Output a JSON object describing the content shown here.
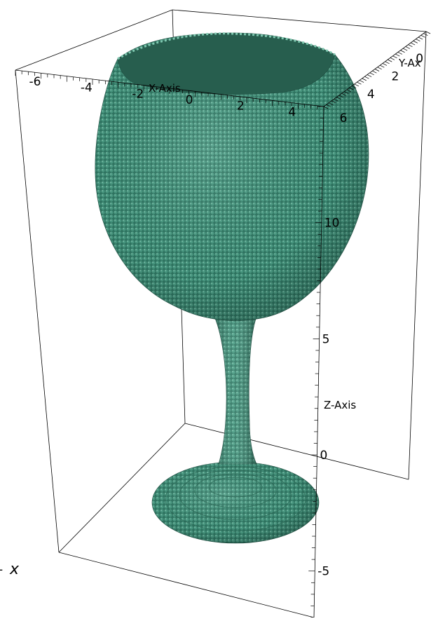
{
  "chart_data": {
    "type": "3d-voxel-surface",
    "object": "wine glass",
    "colors": {
      "surface": "#3f8f78",
      "surface_light": "#5fb096",
      "surface_dark": "#2c6a58",
      "box": "#000000"
    },
    "x_axis": {
      "title": "X-Axis",
      "ticks": [
        -6,
        -4,
        -2,
        0,
        2,
        4,
        6
      ],
      "tick_labels": [
        "-6",
        "-4",
        "-2",
        "0",
        "2",
        "4",
        "6"
      ],
      "range": [
        -6,
        6
      ]
    },
    "y_axis": {
      "title": "Y-Ax",
      "ticks": [
        4,
        2,
        0
      ],
      "tick_labels": [
        "4",
        "2",
        "0"
      ]
    },
    "z_axis": {
      "title": "Z-Axis",
      "ticks": [
        10,
        5,
        0,
        -5
      ],
      "tick_labels": [
        "10",
        "5",
        "0",
        "-5"
      ],
      "range": [
        -7,
        15
      ]
    },
    "corner_label": "x",
    "corner_prefix": "-"
  }
}
